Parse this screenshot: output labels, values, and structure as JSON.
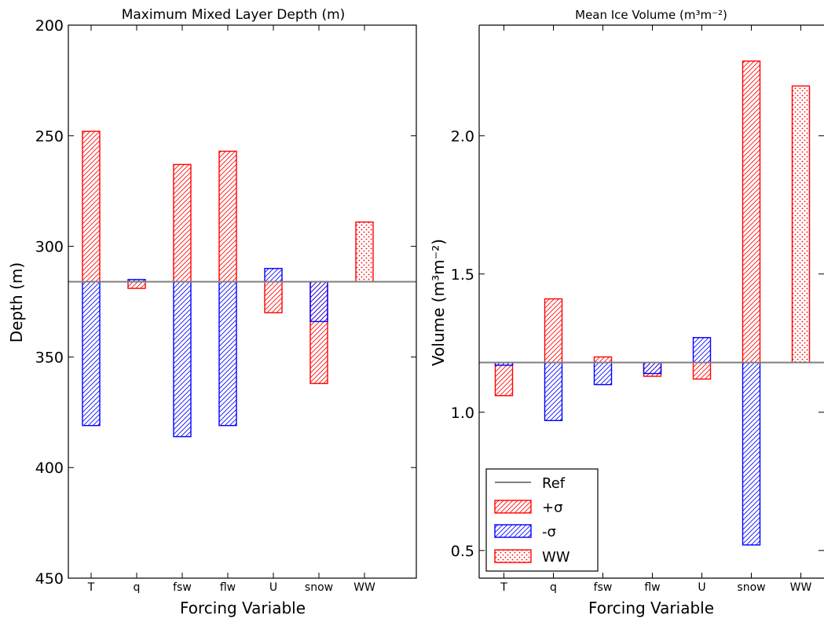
{
  "chart_data": [
    {
      "type": "bar",
      "title": "Maximum Mixed Layer Depth (m)",
      "xlabel": "Forcing Variable",
      "ylabel": "Depth (m)",
      "ylim": [
        450,
        200
      ],
      "y_inverted": true,
      "yticks": [
        200,
        250,
        300,
        350,
        400,
        450
      ],
      "ytick_labels": [
        "200",
        "250",
        "300",
        "350",
        "400",
        "450"
      ],
      "categories": [
        "T",
        "q",
        "fsw",
        "flw",
        "U",
        "snow",
        "WW"
      ],
      "reference": 316,
      "series": [
        {
          "name": "+σ",
          "values": [
            248,
            319,
            263,
            257,
            330,
            362,
            null
          ]
        },
        {
          "name": "-σ",
          "values": [
            381,
            315,
            386,
            381,
            310,
            334,
            null
          ]
        },
        {
          "name": "WW",
          "values": [
            null,
            null,
            null,
            null,
            null,
            null,
            289
          ]
        }
      ]
    },
    {
      "type": "bar",
      "title": "Mean Ice Volume (m³m⁻²)",
      "xlabel": "Forcing Variable",
      "ylabel": "Volume (m³m⁻²)",
      "ylim": [
        0.4,
        2.4
      ],
      "yticks": [
        0.5,
        1.0,
        1.5,
        2.0
      ],
      "ytick_labels": [
        "0.5",
        "1.0",
        "1.5",
        "2.0"
      ],
      "categories": [
        "T",
        "q",
        "fsw",
        "flw",
        "U",
        "snow",
        "WW"
      ],
      "reference": 1.18,
      "series": [
        {
          "name": "+σ",
          "values": [
            1.06,
            1.41,
            1.2,
            1.13,
            1.12,
            2.27,
            null
          ]
        },
        {
          "name": "-σ",
          "values": [
            1.17,
            0.97,
            1.1,
            1.14,
            1.27,
            0.52,
            null
          ]
        },
        {
          "name": "WW",
          "values": [
            null,
            null,
            null,
            null,
            null,
            null,
            2.18
          ]
        }
      ],
      "legend": {
        "placement": "lower-left",
        "entries": [
          "Ref",
          "+σ",
          "-σ",
          "WW"
        ]
      }
    }
  ],
  "colors": {
    "plus_sigma": "#ff0000",
    "minus_sigma": "#0000ff",
    "reference": "#808080",
    "axes": "#000000"
  }
}
